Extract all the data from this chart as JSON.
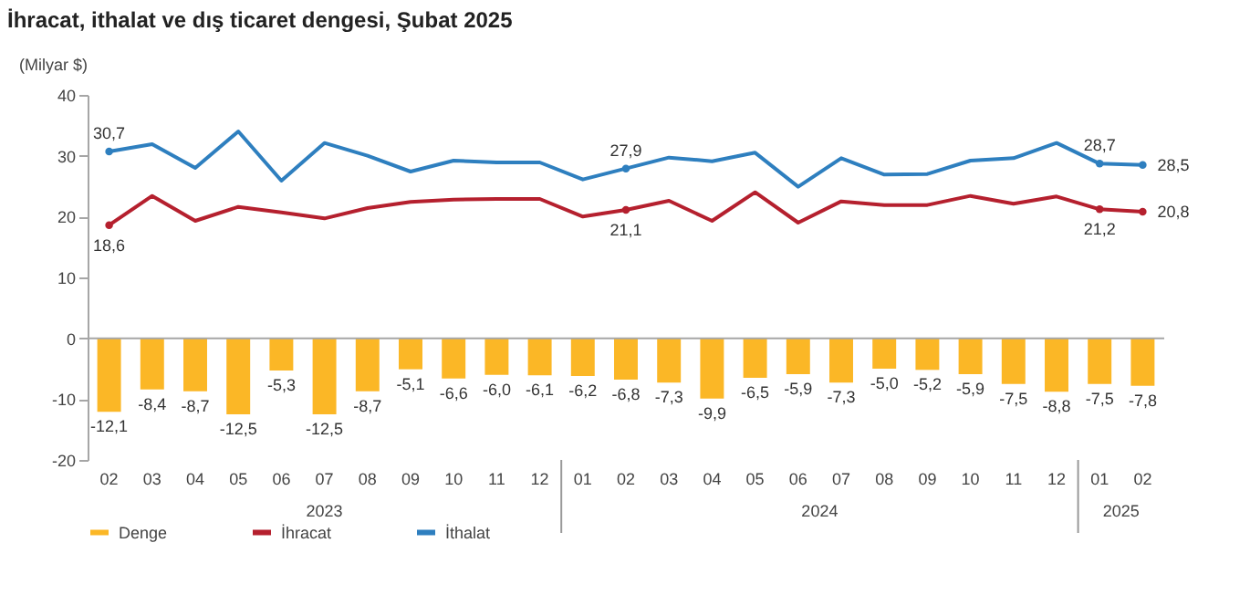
{
  "chart_data": {
    "type": "bar",
    "title": "İhracat, ithalat ve dış ticaret dengesi, Şubat 2025",
    "ylabel": "(Milyar $)",
    "categories": [
      "02",
      "03",
      "04",
      "05",
      "06",
      "07",
      "08",
      "09",
      "10",
      "11",
      "12",
      "01",
      "02",
      "03",
      "04",
      "05",
      "06",
      "07",
      "08",
      "09",
      "10",
      "11",
      "12",
      "01",
      "02"
    ],
    "annotations": [
      "2023",
      "2024",
      "2025"
    ],
    "ylim": [
      -20,
      40
    ],
    "yticks": [
      -20,
      -10,
      0,
      10,
      20,
      30,
      40
    ],
    "grid": false,
    "legend": "bottom",
    "ref_lines": [
      {
        "axis": "y",
        "value": 0,
        "color": "#a6a6a6"
      }
    ],
    "series": [
      {
        "name": "Denge",
        "color": "#fbb726",
        "values": [
          -12.1,
          -8.4,
          -8.7,
          -12.5,
          -5.3,
          -12.5,
          -8.7,
          -5.1,
          -6.6,
          -6.0,
          -6.1,
          -6.2,
          -6.8,
          -7.3,
          -9.9,
          -6.5,
          -5.9,
          -7.3,
          -5.0,
          -5.2,
          -5.9,
          -7.5,
          -8.8,
          -7.5,
          -7.8
        ],
        "value_labels": [
          "-12,1",
          "-8,4",
          "-8,7",
          "-12,5",
          "-5,3",
          "-12,5",
          "-8,7",
          "-5,1",
          "-6,6",
          "-6,0",
          "-6,1",
          "-6,2",
          "-6,8",
          "-7,3",
          "-9,9",
          "-6,5",
          "-5,9",
          "-7,3",
          "-5,0",
          "-5,2",
          "-5,9",
          "-7,5",
          "-8,8",
          "-7,5",
          "-7,8"
        ]
      },
      {
        "name": "İhracat",
        "type": "line",
        "color": "#b5202e",
        "values": [
          18.6,
          23.4,
          19.3,
          21.6,
          20.7,
          19.7,
          21.4,
          22.4,
          22.8,
          22.9,
          22.9,
          20.0,
          21.1,
          22.6,
          19.3,
          24.0,
          19.0,
          22.5,
          21.9,
          21.9,
          23.4,
          22.1,
          23.3,
          21.2,
          20.8
        ],
        "value_labels": [
          "18,6",
          null,
          null,
          null,
          null,
          null,
          null,
          null,
          null,
          null,
          null,
          null,
          "21,1",
          null,
          null,
          null,
          null,
          null,
          null,
          null,
          null,
          null,
          null,
          "21,2",
          "20,8"
        ]
      },
      {
        "name": "İthalat",
        "type": "line",
        "color": "#2e7fbf",
        "values": [
          30.7,
          31.9,
          28.0,
          34.0,
          25.9,
          32.1,
          30.0,
          27.4,
          29.2,
          28.9,
          28.9,
          26.1,
          27.9,
          29.7,
          29.1,
          30.5,
          24.9,
          29.6,
          26.9,
          27.0,
          29.2,
          29.6,
          32.1,
          28.7,
          28.5
        ],
        "value_labels": [
          "30,7",
          null,
          null,
          null,
          null,
          null,
          null,
          null,
          null,
          null,
          null,
          null,
          "27,9",
          null,
          null,
          null,
          null,
          null,
          null,
          null,
          null,
          null,
          null,
          "28,7",
          "28,5"
        ]
      }
    ]
  }
}
